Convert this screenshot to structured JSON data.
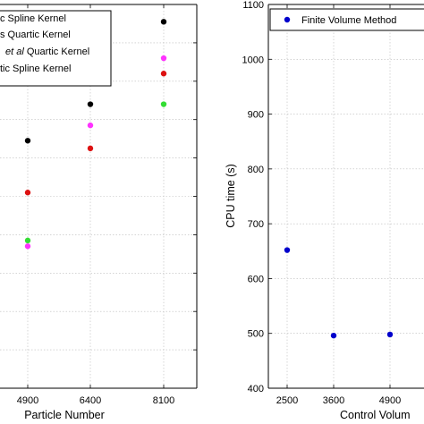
{
  "chart_data": [
    {
      "type": "scatter",
      "xlabel": "Particle Number",
      "ylabel": "",
      "x_ticks": [
        "4900",
        "6400",
        "8100"
      ],
      "y_tick_count": 11,
      "grid": true,
      "legend_position": "top-left (cropped)",
      "legend_entries": [
        {
          "label": "c Spline Kernel",
          "color": "#000000"
        },
        {
          "label": "s Quartic Kernel",
          "color": "#ff33ff"
        },
        {
          "label_prefix": "",
          "label_italic": "et al",
          "label_suffix": " Quartic Kernel",
          "color": "#dd1111"
        },
        {
          "label": "tic Spline Kernel",
          "color": "#33dd33"
        }
      ],
      "series": [
        {
          "color": "#000000",
          "points": [
            {
              "x": "4900",
              "y_rel": 0.645
            },
            {
              "x": "6400",
              "y_rel": 0.74
            },
            {
              "x": "8100",
              "y_rel": 0.955
            }
          ]
        },
        {
          "color": "#ff33ff",
          "points": [
            {
              "x": "4900",
              "y_rel": 0.37
            },
            {
              "x": "6400",
              "y_rel": 0.685
            },
            {
              "x": "8100",
              "y_rel": 0.86
            }
          ]
        },
        {
          "color": "#dd1111",
          "points": [
            {
              "x": "4900",
              "y_rel": 0.51
            },
            {
              "x": "6400",
              "y_rel": 0.625
            },
            {
              "x": "8100",
              "y_rel": 0.82
            }
          ]
        },
        {
          "color": "#33dd33",
          "points": [
            {
              "x": "4900",
              "y_rel": 0.385
            },
            {
              "x": "6400",
              "y_rel": null
            },
            {
              "x": "8100",
              "y_rel": 0.74
            }
          ]
        }
      ]
    },
    {
      "type": "scatter",
      "xlabel": "Control Volum",
      "ylabel": "CPU time (s)",
      "ylim": [
        400,
        1100
      ],
      "y_ticks": [
        400,
        500,
        600,
        700,
        800,
        900,
        1000,
        1100
      ],
      "x_ticks": [
        "2500",
        "3600",
        "4900"
      ],
      "grid": true,
      "legend_position": "top-right",
      "legend_entries": [
        {
          "label": "Finite Volume Method",
          "color": "#0000cc"
        }
      ],
      "series": [
        {
          "name": "Finite Volume Method",
          "color": "#0000cc",
          "points": [
            {
              "x": "2500",
              "y": 652
            },
            {
              "x": "3600",
              "y": 496
            },
            {
              "x": "4900",
              "y": 498
            }
          ]
        }
      ]
    }
  ]
}
